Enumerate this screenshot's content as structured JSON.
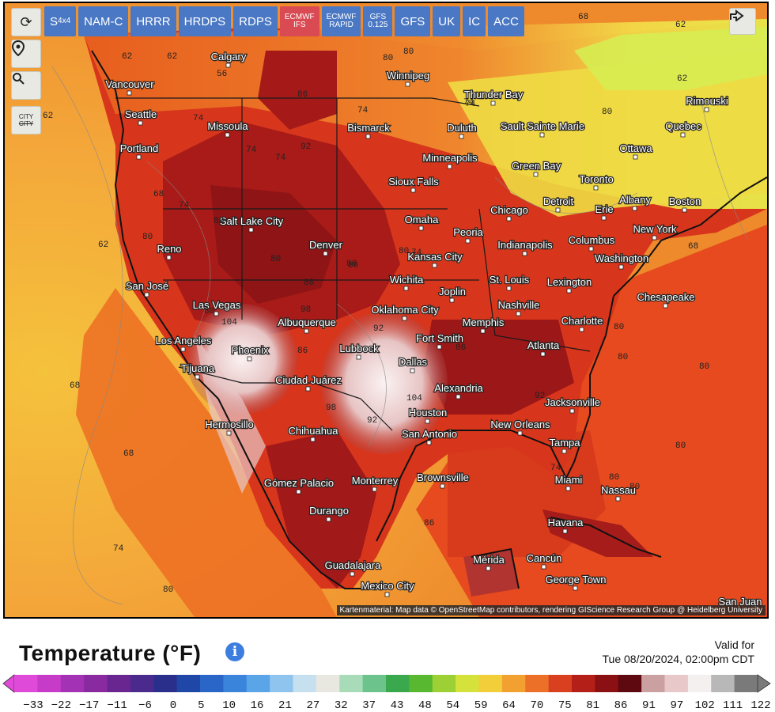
{
  "models": [
    {
      "label": "S",
      "sub": "4x4",
      "active": false
    },
    {
      "label": "NAM-C",
      "active": false
    },
    {
      "label": "HRRR",
      "active": false
    },
    {
      "label": "HRDPS",
      "active": false
    },
    {
      "label": "RDPS",
      "active": false
    },
    {
      "label": "ECMWF",
      "label2": "IFS",
      "active": true
    },
    {
      "label": "ECMWF",
      "label2": "RAPID",
      "active": false
    },
    {
      "label": "GFS",
      "label2": "0.125",
      "active": false
    },
    {
      "label": "GFS",
      "active": false
    },
    {
      "label": "UK",
      "active": false
    },
    {
      "label": "IC",
      "active": false
    },
    {
      "label": "ACC",
      "active": false
    }
  ],
  "tools": {
    "refresh": "refresh-icon",
    "location": "location-pin-icon",
    "zoom": "zoom-icon",
    "city_label": "CITY",
    "city_label2": "CITY"
  },
  "attribution": "Kartenmaterial: Map data © OpenStreetMap contributors, rendering GIScience Research Group @ Heidelberg University",
  "panel": {
    "title": "Temperature (°F)",
    "valid_label": "Valid for",
    "valid_time": "Tue 08/20/2024, 02:00pm CDT"
  },
  "legend": {
    "ticks": [
      "-33",
      "-22",
      "-17",
      "-11",
      "-6",
      "0",
      "5",
      "10",
      "16",
      "21",
      "27",
      "32",
      "37",
      "43",
      "48",
      "54",
      "59",
      "64",
      "70",
      "75",
      "81",
      "86",
      "91",
      "97",
      "102",
      "111",
      "122"
    ]
  },
  "cities": [
    {
      "name": "Calgary"
    },
    {
      "name": "Winnipeg"
    },
    {
      "name": "Vancouver"
    },
    {
      "name": "Seattle"
    },
    {
      "name": "Missoula"
    },
    {
      "name": "Portland"
    },
    {
      "name": "Bismarck"
    },
    {
      "name": "Thunder Bay"
    },
    {
      "name": "Duluth"
    },
    {
      "name": "Sault Sainte Marie"
    },
    {
      "name": "Rimouski"
    },
    {
      "name": "Quebec"
    },
    {
      "name": "Ottawa"
    },
    {
      "name": "Minneapolis"
    },
    {
      "name": "Green Bay"
    },
    {
      "name": "Sioux Falls"
    },
    {
      "name": "Toronto"
    },
    {
      "name": "Albany"
    },
    {
      "name": "Boston"
    },
    {
      "name": "Salt Lake City"
    },
    {
      "name": "Chicago"
    },
    {
      "name": "Detroit"
    },
    {
      "name": "Erie"
    },
    {
      "name": "Omaha"
    },
    {
      "name": "Peoria"
    },
    {
      "name": "New York"
    },
    {
      "name": "Reno"
    },
    {
      "name": "Denver"
    },
    {
      "name": "Kansas City"
    },
    {
      "name": "Indianapolis"
    },
    {
      "name": "Columbus"
    },
    {
      "name": "Washington"
    },
    {
      "name": "San José"
    },
    {
      "name": "Wichita"
    },
    {
      "name": "St. Louis"
    },
    {
      "name": "Lexington"
    },
    {
      "name": "Joplin"
    },
    {
      "name": "Chesapeake"
    },
    {
      "name": "Las Vegas"
    },
    {
      "name": "Oklahoma City"
    },
    {
      "name": "Nashville"
    },
    {
      "name": "Albuquerque"
    },
    {
      "name": "Memphis"
    },
    {
      "name": "Charlotte"
    },
    {
      "name": "Los Angeles"
    },
    {
      "name": "Fort Smith"
    },
    {
      "name": "Phoenix"
    },
    {
      "name": "Lubbock"
    },
    {
      "name": "Atlanta"
    },
    {
      "name": "Tijuana"
    },
    {
      "name": "Dallas"
    },
    {
      "name": "Ciudad Juárez"
    },
    {
      "name": "Alexandria"
    },
    {
      "name": "Jacksonville"
    },
    {
      "name": "Houston"
    },
    {
      "name": "Hermosillo"
    },
    {
      "name": "Chihuahua"
    },
    {
      "name": "San Antonio"
    },
    {
      "name": "New Orleans"
    },
    {
      "name": "Tampa"
    },
    {
      "name": "Brownsville"
    },
    {
      "name": "Miami"
    },
    {
      "name": "Nassau"
    },
    {
      "name": "Gómez Palacio"
    },
    {
      "name": "Monterrey"
    },
    {
      "name": "Durango"
    },
    {
      "name": "Havana"
    },
    {
      "name": "Mérida"
    },
    {
      "name": "Cancún"
    },
    {
      "name": "George Town"
    },
    {
      "name": "Guadalajara"
    },
    {
      "name": "Mexico City"
    },
    {
      "name": "San Juan"
    }
  ],
  "isotherm_labels": [
    "62",
    "62",
    "56",
    "80",
    "80",
    "68",
    "62",
    "62",
    "62",
    "86",
    "74",
    "74",
    "74",
    "62",
    "80",
    "74",
    "74",
    "68",
    "74",
    "80",
    "80",
    "74",
    "80",
    "92",
    "86",
    "80",
    "86",
    "80",
    "104",
    "98",
    "92",
    "104",
    "86",
    "98",
    "92",
    "86",
    "80",
    "80",
    "80",
    "68",
    "68",
    "74",
    "80",
    "86",
    "74",
    "62",
    "68",
    "80",
    "80",
    "80",
    "86",
    "92",
    "74"
  ],
  "colors": {
    "ocean_pacific": "#f2a53a",
    "land_hot": "#c0241e",
    "land_very_hot": "#7e0f12",
    "land_extreme": "#f1d8d8",
    "cool": "#f0e84a",
    "active_model": "#d94a52",
    "model": "#4a78c4"
  }
}
